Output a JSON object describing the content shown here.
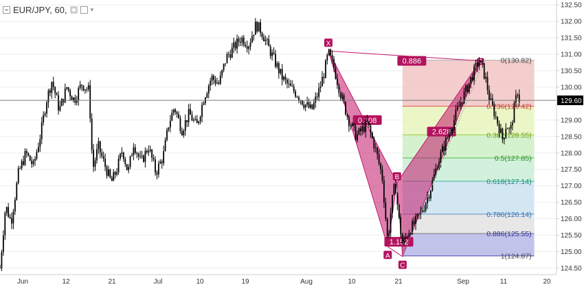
{
  "header": {
    "symbol": "EUR/JPY, 60,",
    "icons": [
      "collapse-icon",
      "settings-icon",
      "close-icon",
      "dropdown-caret-icon"
    ]
  },
  "colors": {
    "candle": "#000000",
    "pattern_fill": "#c2186b",
    "pattern_label_bg": "#b3125e",
    "price_line": "#787878",
    "price_label_bg": "#000000",
    "axis_text": "#333333",
    "grid": "#eeeeee"
  },
  "chart_data": {
    "type": "candlestick",
    "instrument": "EUR/JPY",
    "timeframe": "60",
    "y_range": [
      124.3,
      132.65
    ],
    "x_ticks": [
      "Jun",
      "12",
      "21",
      "Jul",
      "10",
      "19",
      "Aug",
      "10",
      "21",
      "Sep",
      "11",
      "20"
    ],
    "y_ticks": [
      "132.50",
      "132.00",
      "131.50",
      "131.00",
      "130.50",
      "130.00",
      "129.00",
      "128.50",
      "128.00",
      "127.50",
      "127.00",
      "126.50",
      "126.00",
      "125.50",
      "125.00",
      "124.50"
    ],
    "last_price": "129.60",
    "price_path": [
      {
        "t": 0,
        "p": 124.5
      },
      {
        "t": 1.5,
        "p": 126.4
      },
      {
        "t": 3,
        "p": 125.9
      },
      {
        "t": 5,
        "p": 127.4
      },
      {
        "t": 7,
        "p": 128.0
      },
      {
        "t": 9,
        "p": 127.6
      },
      {
        "t": 11,
        "p": 128.6
      },
      {
        "t": 12.5,
        "p": 129.6
      },
      {
        "t": 14,
        "p": 130.2
      },
      {
        "t": 16,
        "p": 129.3
      },
      {
        "t": 18,
        "p": 130.0
      },
      {
        "t": 20,
        "p": 129.6
      },
      {
        "t": 22,
        "p": 130.1
      },
      {
        "t": 24,
        "p": 129.9
      },
      {
        "t": 25,
        "p": 127.5
      },
      {
        "t": 26.5,
        "p": 128.2
      },
      {
        "t": 28,
        "p": 127.7
      },
      {
        "t": 30,
        "p": 127.1
      },
      {
        "t": 31.5,
        "p": 127.5
      },
      {
        "t": 33,
        "p": 128.1
      },
      {
        "t": 34.5,
        "p": 127.4
      },
      {
        "t": 36,
        "p": 128.3
      },
      {
        "t": 38,
        "p": 127.7
      },
      {
        "t": 40,
        "p": 128.2
      },
      {
        "t": 42,
        "p": 127.4
      },
      {
        "t": 44,
        "p": 127.9
      },
      {
        "t": 45.5,
        "p": 128.9
      },
      {
        "t": 47,
        "p": 129.4
      },
      {
        "t": 49,
        "p": 128.7
      },
      {
        "t": 51,
        "p": 129.2
      },
      {
        "t": 53,
        "p": 128.8
      },
      {
        "t": 55,
        "p": 129.7
      },
      {
        "t": 57,
        "p": 130.3
      },
      {
        "t": 59,
        "p": 130.1
      },
      {
        "t": 61,
        "p": 130.9
      },
      {
        "t": 63,
        "p": 131.2
      },
      {
        "t": 65,
        "p": 131.5
      },
      {
        "t": 67,
        "p": 131.3
      },
      {
        "t": 69,
        "p": 131.9
      },
      {
        "t": 70.5,
        "p": 131.7
      },
      {
        "t": 72,
        "p": 131.3
      },
      {
        "t": 74,
        "p": 130.8
      },
      {
        "t": 76,
        "p": 130.3
      },
      {
        "t": 78,
        "p": 130.0
      },
      {
        "t": 80,
        "p": 129.8
      },
      {
        "t": 82,
        "p": 129.5
      },
      {
        "t": 84,
        "p": 129.3
      },
      {
        "t": 86,
        "p": 129.9
      },
      {
        "t": 87.5,
        "p": 130.5
      },
      {
        "t": 88.5,
        "p": 131.05
      },
      {
        "t": 90,
        "p": 130.6
      },
      {
        "t": 92,
        "p": 129.7
      },
      {
        "t": 94,
        "p": 129.0
      },
      {
        "t": 96,
        "p": 128.5
      },
      {
        "t": 97.5,
        "p": 128.7
      },
      {
        "t": 99,
        "p": 128.9
      },
      {
        "t": 101,
        "p": 128.2
      },
      {
        "t": 103,
        "p": 127.3
      },
      {
        "t": 104.5,
        "p": 125.3
      },
      {
        "t": 105.5,
        "p": 126.4
      },
      {
        "t": 106.5,
        "p": 127.1
      },
      {
        "t": 107.5,
        "p": 126.0
      },
      {
        "t": 108.5,
        "p": 125.2
      },
      {
        "t": 110,
        "p": 125.6
      },
      {
        "t": 112,
        "p": 125.9
      },
      {
        "t": 114,
        "p": 126.3
      },
      {
        "t": 116,
        "p": 126.9
      },
      {
        "t": 118,
        "p": 127.7
      },
      {
        "t": 120,
        "p": 128.3
      },
      {
        "t": 122,
        "p": 128.9
      },
      {
        "t": 124,
        "p": 129.5
      },
      {
        "t": 126,
        "p": 130.0
      },
      {
        "t": 127.5,
        "p": 130.4
      },
      {
        "t": 129,
        "p": 130.8
      },
      {
        "t": 130,
        "p": 130.6
      },
      {
        "t": 131,
        "p": 130.2
      },
      {
        "t": 132,
        "p": 129.6
      },
      {
        "t": 133,
        "p": 129.3
      },
      {
        "t": 134.5,
        "p": 128.8
      },
      {
        "t": 135.5,
        "p": 128.4
      },
      {
        "t": 136.5,
        "p": 128.9
      },
      {
        "t": 137.5,
        "p": 128.6
      },
      {
        "t": 138.5,
        "p": 129.3
      },
      {
        "t": 139.5,
        "p": 129.9
      },
      {
        "t": 140,
        "p": 129.6
      }
    ],
    "harmonic_pattern": {
      "points": [
        {
          "label": "X",
          "t": 88.5,
          "p": 131.1
        },
        {
          "label": "A",
          "t": 104.5,
          "p": 125.15
        },
        {
          "label": "B",
          "t": 107,
          "p": 127.1
        },
        {
          "label": "C",
          "t": 108.5,
          "p": 124.85
        },
        {
          "label": "D",
          "t": 129.5,
          "p": 130.8
        }
      ],
      "ratios": [
        {
          "value": "0.886",
          "t": 111,
          "p": 130.8
        },
        {
          "value": "0.308",
          "t": 99,
          "p": 129.0
        },
        {
          "value": "1.152",
          "t": 107.5,
          "p": 125.3
        },
        {
          "value": "2.628",
          "t": 119,
          "p": 128.65
        }
      ],
      "d_dot_label": "D"
    },
    "fibonacci": {
      "t_start": 108.5,
      "t_end": 144,
      "levels": [
        {
          "ratio": "0",
          "price": 130.82,
          "label": "0(130.82)",
          "fill": "#f2c4c4",
          "line": "#b0b0b0",
          "text": "#444444"
        },
        {
          "ratio": "0.236",
          "price": 129.42,
          "label": "0.236(129.42)",
          "fill": "#e8f4bd",
          "line": "#e14b4b",
          "text": "#c0392b"
        },
        {
          "ratio": "0.382",
          "price": 128.55,
          "label": "0.382(128.55)",
          "fill": "#cdf0c6",
          "line": "#9ccc3c",
          "text": "#6a9a1a"
        },
        {
          "ratio": "0.5",
          "price": 127.85,
          "label": "0.5(127.85)",
          "fill": "#c9eed6",
          "line": "#55b84d",
          "text": "#2e8b28"
        },
        {
          "ratio": "0.618",
          "price": 127.14,
          "label": "0.618(127.14)",
          "fill": "#cbe3f0",
          "line": "#41b09a",
          "text": "#1a8a74"
        },
        {
          "ratio": "0.786",
          "price": 126.14,
          "label": "0.786(126.14)",
          "fill": "#e3e3e3",
          "line": "#5b8fc9",
          "text": "#2f6fb5"
        },
        {
          "ratio": "0.886",
          "price": 125.55,
          "label": "0.886(125.55)",
          "fill": "#b6b9e6",
          "line": "#7a7a7a",
          "text": "#2b2b9a"
        },
        {
          "ratio": "1",
          "price": 124.87,
          "label": "1(124.87)",
          "fill": "none",
          "line": "#4a4ab3",
          "text": "#444444"
        }
      ]
    },
    "trend_line": {
      "t1": 108.5,
      "p1": 124.87,
      "t2": 130.5,
      "p2": 130.82
    }
  }
}
